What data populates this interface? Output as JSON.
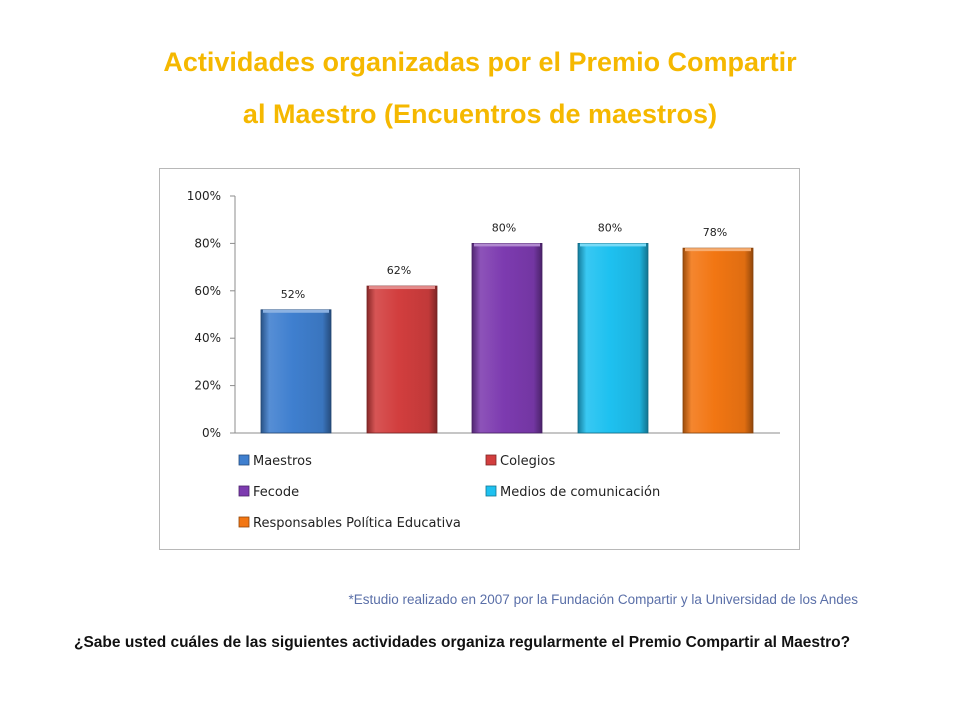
{
  "title_line1": "Actividades organizadas por el Premio Compartir",
  "title_line2": "al Maestro (Encuentros de maestros)",
  "footnote": "*Estudio realizado en 2007 por la Fundación Compartir y la Universidad de los Andes",
  "question": "¿Sabe usted cuáles de las siguientes actividades organiza regularmente el Premio Compartir al Maestro?",
  "chart_data": {
    "type": "bar",
    "title": "",
    "xlabel": "",
    "ylabel": "",
    "ylim": [
      0,
      100
    ],
    "yticks": [
      "0%",
      "20%",
      "40%",
      "60%",
      "80%",
      "100%"
    ],
    "legend_position": "bottom",
    "grid": false,
    "categories": [
      "Maestros",
      "Colegios",
      "Fecode",
      "Medios de comunicación",
      "Responsables Política Educativa"
    ],
    "values": [
      52,
      62,
      80,
      80,
      78
    ],
    "data_labels": [
      "52%",
      "62%",
      "80%",
      "80%",
      "78%"
    ],
    "colors": [
      "#3f7fcf",
      "#d23e3e",
      "#7d3bb0",
      "#1ec1f0",
      "#f27613"
    ]
  }
}
